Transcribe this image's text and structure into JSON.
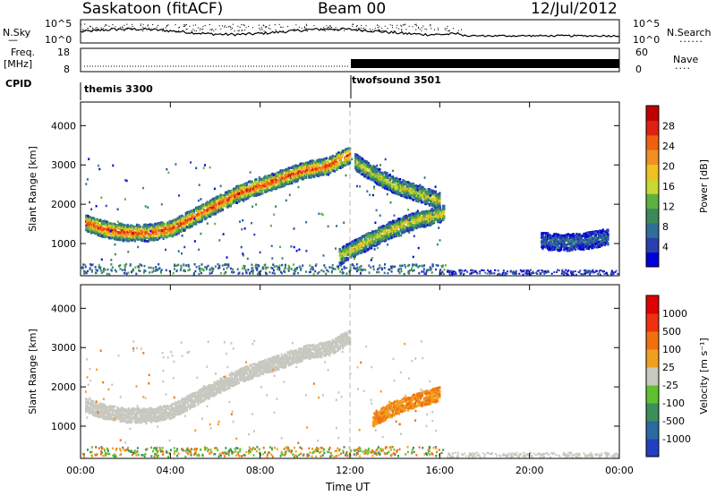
{
  "header": {
    "station": "Saskatoon (fitACF)",
    "beam": "Beam 00",
    "date": "12/Jul/2012"
  },
  "top_panels": {
    "nsky_label": "N.Sky",
    "nsearch_label": "N.Search",
    "noise_ticks": [
      "10^5",
      "10^0"
    ],
    "freq_label_line1": "Freq.",
    "freq_label_line2": "[MHz]",
    "freq_ticks": [
      "18",
      "8"
    ],
    "nave_label": "Nave",
    "nave_ticks": [
      "60",
      "0"
    ],
    "cpid_label": "CPID",
    "cpid_1": "themis 3300",
    "cpid_2": "twofsound 3501"
  },
  "chart_data": [
    {
      "type": "heatmap",
      "title": "",
      "xlabel": "Time UT",
      "ylabel": "Slant Range [km]",
      "xlim_hours": [
        0,
        24
      ],
      "ylim": [
        180,
        4600
      ],
      "x_ticks": [
        "00:00",
        "04:00",
        "08:00",
        "12:00",
        "16:00",
        "20:00",
        "00:00"
      ],
      "y_ticks": [
        "1000",
        "2000",
        "3000",
        "4000"
      ],
      "colorbar": {
        "label": "Power [dB]",
        "ticks": [
          "4",
          "8",
          "12",
          "16",
          "20",
          "24",
          "28"
        ],
        "colors": [
          "#0000dd",
          "#2a3fb0",
          "#2f6f9a",
          "#3b8a5a",
          "#5fb040",
          "#c8d830",
          "#f0c020",
          "#f09020",
          "#f06010",
          "#e02010",
          "#c00000"
        ]
      },
      "bands": [
        {
          "name": "main arc",
          "x": [
            0.2,
            1,
            2,
            3,
            4,
            5,
            6,
            7,
            8,
            9,
            10,
            11,
            12
          ],
          "y": [
            1550,
            1400,
            1300,
            1300,
            1400,
            1700,
            2000,
            2300,
            2500,
            2700,
            2900,
            3000,
            3300
          ],
          "level": 0.85
        },
        {
          "name": "descending echoes",
          "x": [
            12.2,
            13,
            14,
            15,
            16
          ],
          "y": [
            3100,
            2800,
            2500,
            2300,
            2100
          ],
          "level": 0.55
        },
        {
          "name": "rising band",
          "x": [
            11.5,
            12.5,
            13.5,
            14.5,
            15.5,
            16.2
          ],
          "y": [
            700,
            1000,
            1300,
            1550,
            1700,
            1800
          ],
          "level": 0.6
        },
        {
          "name": "late echoes",
          "x": [
            20.5,
            21.5,
            22.5,
            23.5
          ],
          "y": [
            1100,
            1050,
            1100,
            1200
          ],
          "level": 0.25
        }
      ]
    },
    {
      "type": "heatmap",
      "title": "",
      "xlabel": "Time UT",
      "ylabel": "Slant Range [km]",
      "xlim_hours": [
        0,
        24
      ],
      "ylim": [
        180,
        4600
      ],
      "x_ticks": [
        "00:00",
        "04:00",
        "08:00",
        "12:00",
        "16:00",
        "20:00",
        "00:00"
      ],
      "y_ticks": [
        "1000",
        "2000",
        "3000",
        "4000"
      ],
      "colorbar": {
        "label": "Velocity [m s⁻¹]",
        "ticks": [
          "1000",
          "500",
          "100",
          "25",
          "-25",
          "-100",
          "-500",
          "-1000"
        ],
        "colors": [
          "#2040c0",
          "#2a6aa0",
          "#3c8e5a",
          "#60c030",
          "#c8c8c0",
          "#f0a020",
          "#f07010",
          "#f03010",
          "#e00000"
        ]
      },
      "bands": [
        {
          "name": "ground scatter arc",
          "x": [
            0.2,
            1,
            2,
            3,
            4,
            5,
            6,
            7,
            8,
            9,
            10,
            11,
            12
          ],
          "y": [
            1550,
            1400,
            1300,
            1300,
            1400,
            1700,
            2000,
            2300,
            2500,
            2700,
            2900,
            3000,
            3300
          ],
          "level": "grey"
        },
        {
          "name": "negative velocity band",
          "x": [
            13,
            14,
            15,
            16
          ],
          "y": [
            1200,
            1500,
            1700,
            1850
          ],
          "level": "orange"
        }
      ]
    }
  ]
}
